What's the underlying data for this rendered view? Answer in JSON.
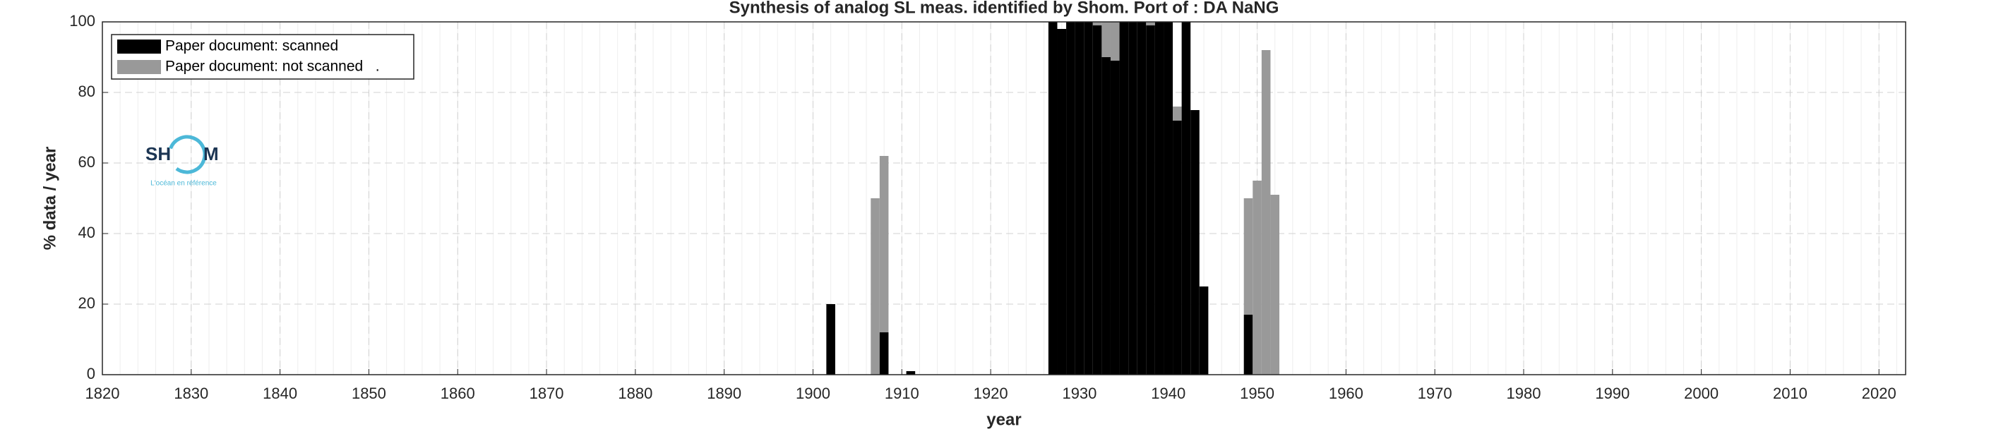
{
  "chart_data": {
    "type": "stacked_bar",
    "title": "Synthesis of analog SL meas. identified by Shom. Port of : DA NaNG",
    "xlabel": "year",
    "ylabel": "% data / year",
    "x": [
      1902,
      1907,
      1908,
      1911,
      1927,
      1928,
      1929,
      1930,
      1931,
      1932,
      1933,
      1934,
      1935,
      1936,
      1937,
      1938,
      1939,
      1940,
      1941,
      1942,
      1943,
      1944,
      1949,
      1950,
      1951,
      1952
    ],
    "series": [
      {
        "name": "Paper document: scanned",
        "color": "#000000",
        "values": [
          20,
          0,
          12,
          1,
          100,
          98,
          100,
          100,
          100,
          99,
          90,
          89,
          100,
          100,
          100,
          99,
          100,
          100,
          72,
          100,
          75,
          25,
          17,
          0,
          0,
          0
        ]
      },
      {
        "name": "Paper document: not scanned   .",
        "color": "#999999",
        "values": [
          0,
          50,
          50,
          0,
          0,
          0,
          0,
          0,
          0,
          1,
          10,
          11,
          0,
          0,
          0,
          1,
          0,
          0,
          4,
          0,
          0,
          0,
          33,
          55,
          92,
          51
        ]
      }
    ],
    "xlim": [
      1820,
      2023
    ],
    "xticks": [
      1820,
      1830,
      1840,
      1850,
      1860,
      1870,
      1880,
      1890,
      1900,
      1910,
      1920,
      1930,
      1940,
      1950,
      1960,
      1970,
      1980,
      1990,
      2000,
      2010,
      2020
    ],
    "ylim": [
      0,
      100
    ],
    "yticks": [
      0,
      20,
      40,
      60,
      80,
      100
    ],
    "grid": true,
    "minor_grid_step": 2,
    "legend": "upper left",
    "logo": {
      "left": "SH",
      "right": "M",
      "tagline": "L'océan en référence"
    }
  }
}
